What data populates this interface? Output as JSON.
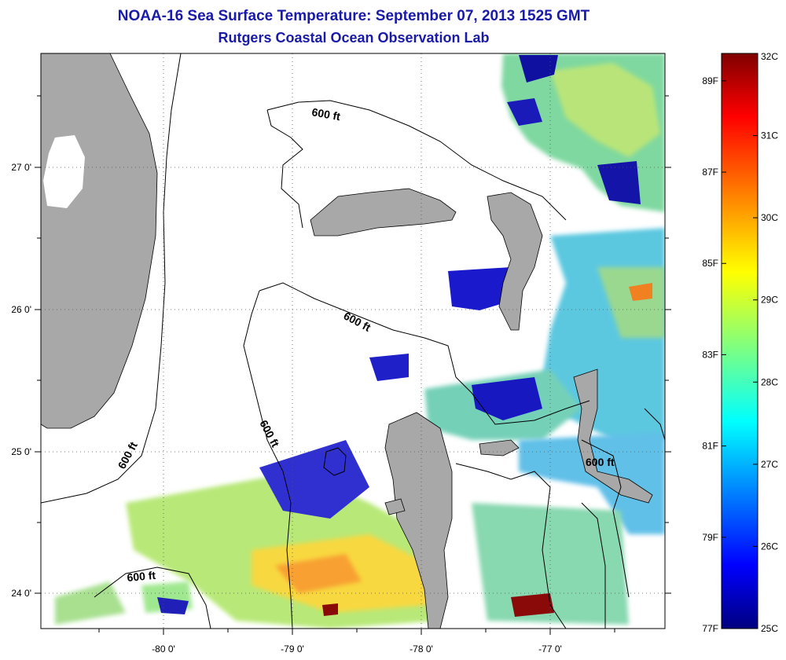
{
  "title": "NOAA-16 Sea Surface Temperature:  September 07, 2013 1525 GMT",
  "subtitle": "Rutgers Coastal Ocean Observation Lab",
  "map": {
    "longitude_ticks": [
      "-80 0'",
      "-79 0'",
      "-78 0'",
      "-77 0'"
    ],
    "latitude_ticks": [
      "27 0'",
      "26 0'",
      "25 0'",
      "24 0'"
    ],
    "lon_range": [
      -80.85,
      -76.25
    ],
    "lat_range": [
      23.75,
      27.8
    ],
    "contour_labels": [
      "600 ft",
      "600 ft",
      "600 ft",
      "600 ft",
      "600 ft",
      "600 ft"
    ],
    "colors": {
      "land": "#a8a8a8",
      "cloud": "#ffffff",
      "isobath": "#000000"
    }
  },
  "colorbar": {
    "celsius_ticks": [
      "32C",
      "31C",
      "30C",
      "29C",
      "28C",
      "27C",
      "26C",
      "25C"
    ],
    "fahrenheit_ticks": [
      "89F",
      "87F",
      "85F",
      "83F",
      "81F",
      "79F",
      "77F"
    ],
    "range_c": [
      25,
      32
    ],
    "colormap": "jet"
  }
}
